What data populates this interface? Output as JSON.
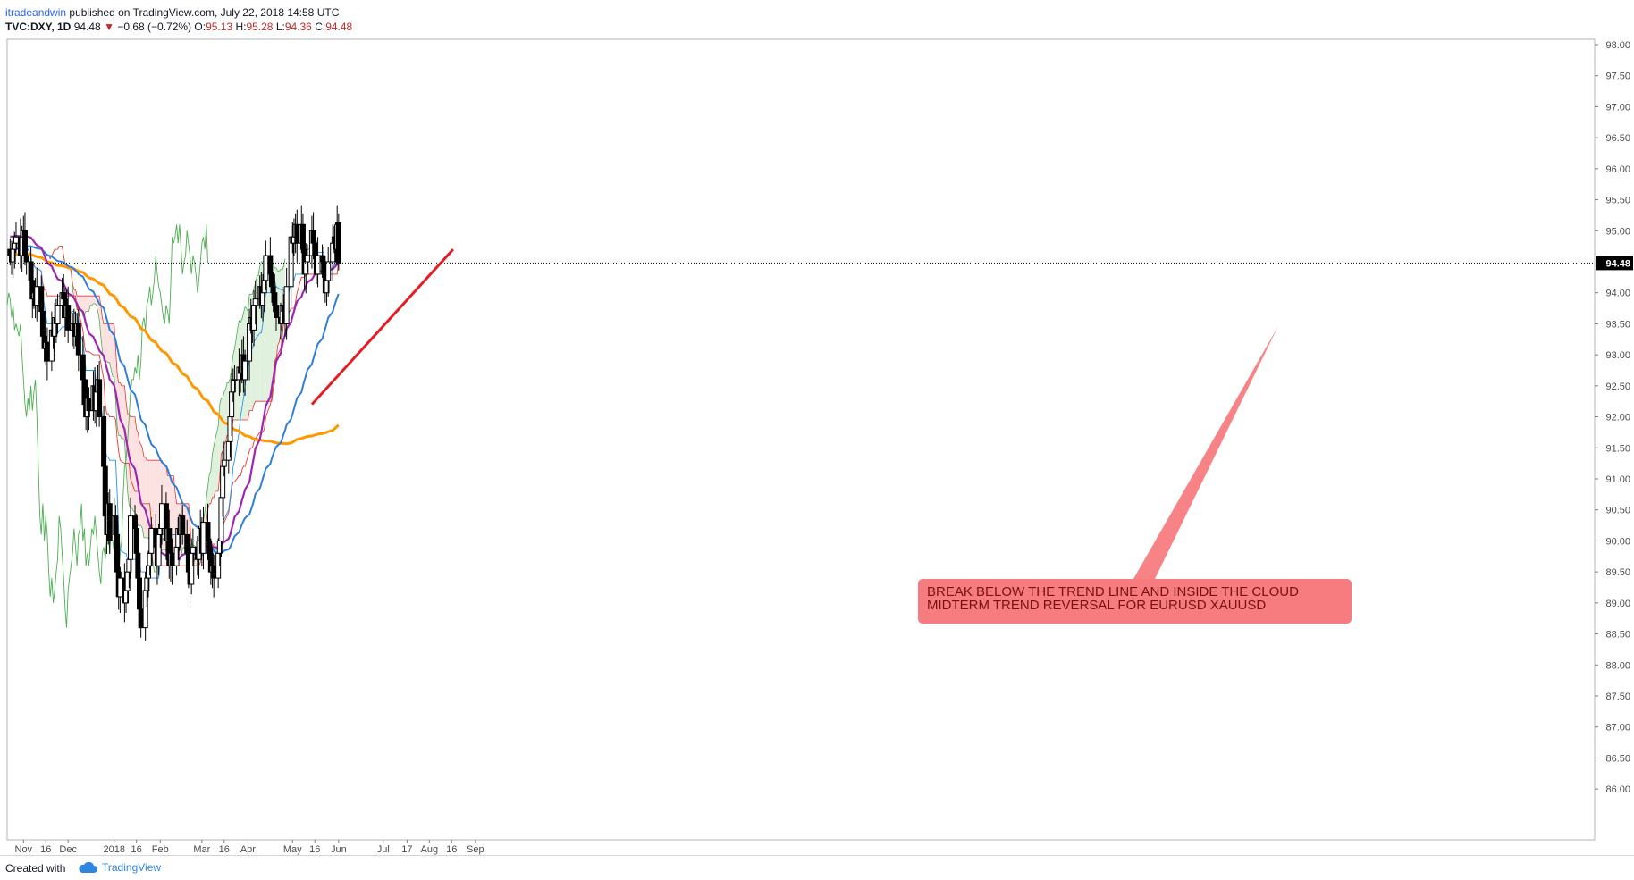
{
  "header": {
    "author": "itradeandwin",
    "published": "published on TradingView.com, July 22, 2018 14:58 UTC",
    "symbol": "TVC:DXY, 1D",
    "last": "94.48",
    "change": "−0.68 (−0.72%)",
    "o_label": "O:",
    "o": "95.13",
    "h_label": "H:",
    "h": "95.28",
    "l_label": "L:",
    "l": "94.36",
    "c_label": "C:",
    "c": "94.48"
  },
  "footer": {
    "created_with": "Created with",
    "brand": "TradingView"
  },
  "annotation": {
    "line1": "BREAK BELOW THE TREND LINE AND INSIDE THE CLOUD",
    "line2": "MIDTERM TREND REVERSAL FOR EURUSD XAUUSD"
  },
  "colors": {
    "up": "#ffffff",
    "down": "#000000",
    "ma200": "#ff9800",
    "ma50": "#9c27b0",
    "ma100": "#2f7ed8",
    "tenkan": "#2196f3",
    "kijun": "#e53935",
    "chikou": "#4caf50",
    "cloud_bull": "#dff0dc",
    "cloud_bear": "#fde0e0",
    "trendline": "#e51c23",
    "annotation_bg": "#f77c80"
  },
  "chart_data": {
    "type": "candlestick",
    "symbol": "TVC:DXY",
    "timeframe": "1D",
    "ylim": [
      85.5,
      98.0
    ],
    "y_ticks": [
      "98.00",
      "97.50",
      "97.00",
      "96.50",
      "96.00",
      "95.50",
      "95.00",
      "94.48",
      "94.00",
      "93.50",
      "93.00",
      "92.50",
      "92.00",
      "91.50",
      "91.00",
      "90.50",
      "90.00",
      "89.50",
      "89.00",
      "88.50",
      "88.00",
      "87.50",
      "87.00",
      "86.50",
      "86.00"
    ],
    "x_ticks": [
      {
        "label": "Nov",
        "month": 10,
        "day": 1
      },
      {
        "label": "16",
        "month": 10,
        "day": 16
      },
      {
        "label": "Dec",
        "month": 11,
        "day": 1
      },
      {
        "label": "2018",
        "month": 12,
        "day": 1
      },
      {
        "label": "16",
        "month": 12,
        "day": 16
      },
      {
        "label": "Feb",
        "month": 13,
        "day": 1
      },
      {
        "label": "Mar",
        "month": 14,
        "day": 1
      },
      {
        "label": "16",
        "month": 14,
        "day": 16
      },
      {
        "label": "Apr",
        "month": 15,
        "day": 1
      },
      {
        "label": "May",
        "month": 16,
        "day": 1
      },
      {
        "label": "16",
        "month": 16,
        "day": 16
      },
      {
        "label": "Jun",
        "month": 17,
        "day": 1
      },
      {
        "label": "Jul",
        "month": 18,
        "day": 1
      },
      {
        "label": "17",
        "month": 18,
        "day": 17
      },
      {
        "label": "Aug",
        "month": 19,
        "day": 1
      },
      {
        "label": "16",
        "month": 19,
        "day": 16
      },
      {
        "label": "Sep",
        "month": 20,
        "day": 1
      }
    ],
    "last_price": 94.48,
    "ohlc_last": {
      "open": 95.13,
      "high": 95.28,
      "low": 94.36,
      "close": 94.48
    },
    "candles_close": [
      94.6,
      94.5,
      94.7,
      94.8,
      94.9,
      94.6,
      94.9,
      95.0,
      94.6,
      94.5,
      94.2,
      93.9,
      94.0,
      93.8,
      94.1,
      93.7,
      93.3,
      93.1,
      93.2,
      92.9,
      93.4,
      93.3,
      93.6,
      93.5,
      93.8,
      94.0,
      93.9,
      93.6,
      93.8,
      93.4,
      93.5,
      93.4,
      93.3,
      93.5,
      93.0,
      92.6,
      92.2,
      92.0,
      92.3,
      92.1,
      92.5,
      92.1,
      92.4,
      92.6,
      92.0,
      91.2,
      90.4,
      90.1,
      90.6,
      90.0,
      90.4,
      90.1,
      89.5,
      89.1,
      89.4,
      89.0,
      89.2,
      89.5,
      89.7,
      90.4,
      90.2,
      89.8,
      89.4,
      88.9,
      88.6,
      89.2,
      89.4,
      89.6,
      89.8,
      90.2,
      89.9,
      89.6,
      90.1,
      90.2,
      90.6,
      90.0,
      90.2,
      89.6,
      89.8,
      89.6,
      89.9,
      90.2,
      90.1,
      90.4,
      90.1,
      89.8,
      89.5,
      89.3,
      89.8,
      89.9,
      89.7,
      90.0,
      90.2,
      89.8,
      90.3,
      90.0,
      89.8,
      89.5,
      89.6,
      89.4,
      89.8,
      90.0,
      90.7,
      91.2,
      91.3,
      91.6,
      92.0,
      92.4,
      92.6,
      92.6,
      92.8,
      92.7,
      93.0,
      92.6,
      92.9,
      93.5,
      93.6,
      93.4,
      93.8,
      93.9,
      94.1,
      93.8,
      94.0,
      94.2,
      94.6,
      94.3,
      94.1,
      94.0,
      93.8,
      93.6,
      93.5,
      93.8,
      93.7,
      93.5,
      94.1,
      94.9,
      94.8,
      94.9,
      95.1,
      94.8,
      95.1,
      94.7,
      94.3,
      94.5,
      94.6,
      95.0,
      94.8,
      94.6,
      94.3,
      94.6,
      94.5,
      94.3,
      94.0,
      94.2,
      94.5,
      94.8,
      94.9,
      94.7,
      95.1,
      94.48
    ],
    "series": [
      {
        "name": "SMA 200",
        "color": "#ff9800"
      },
      {
        "name": "SMA 50",
        "color": "#9c27b0"
      },
      {
        "name": "SMA 100",
        "color": "#2f7ed8"
      },
      {
        "name": "Ichimoku Tenkan",
        "color": "#2196f3"
      },
      {
        "name": "Ichimoku Kijun",
        "color": "#e53935"
      },
      {
        "name": "Ichimoku Chikou",
        "color": "#4caf50"
      }
    ],
    "trendline": {
      "from": {
        "date": "2018-05-14",
        "value": 92.2
      },
      "to": {
        "date": "2018-08-17",
        "value": 94.7
      }
    },
    "grid": false
  }
}
